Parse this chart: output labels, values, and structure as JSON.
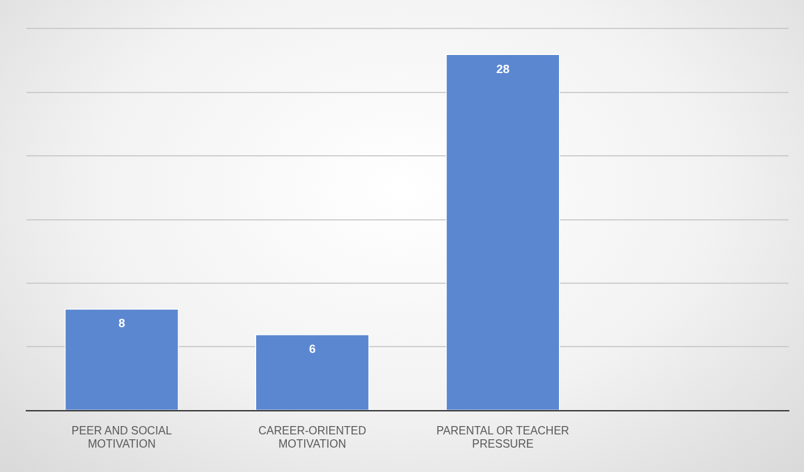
{
  "chart_data": {
    "type": "bar",
    "categories": [
      "PEER AND SOCIAL MOTIVATION",
      "CAREER-ORIENTED MOTIVATION",
      "PARENTAL OR TEACHER PRESSURE",
      null
    ],
    "values": [
      8,
      6,
      28,
      null
    ],
    "color": "#5b87d1",
    "grid": "y",
    "tick_labels": "x",
    "data_labels": true
  }
}
